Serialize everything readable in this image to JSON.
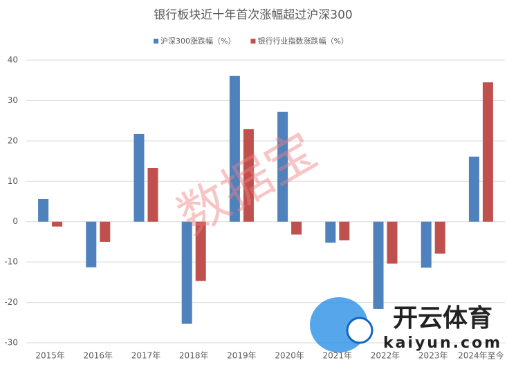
{
  "chart_data": {
    "type": "bar",
    "title": "银行板块近十年首次涨幅超过沪深300",
    "categories": [
      "2015年",
      "2016年",
      "2017年",
      "2018年",
      "2019年",
      "2020年",
      "2021年",
      "2022年",
      "2023年",
      "2024年至今"
    ],
    "series": [
      {
        "name": "沪深300涨跌幅（%）",
        "color": "#4f81bd",
        "values": [
          5.6,
          -11.3,
          21.7,
          -25.3,
          36.1,
          27.2,
          -5.2,
          -21.6,
          -11.4,
          16.1
        ]
      },
      {
        "name": "银行行业指数涨跌幅（%）",
        "color": "#c0504d",
        "values": [
          -1.2,
          -5.0,
          13.3,
          -14.7,
          22.9,
          -3.2,
          -4.6,
          -10.4,
          -7.9,
          34.5
        ]
      }
    ],
    "ylim": [
      -30,
      40
    ],
    "yticks": [
      -30,
      -20,
      -10,
      0,
      10,
      20,
      30,
      40
    ],
    "grid": true,
    "legend": "top",
    "watermarks": [
      "数据宝",
      "开云体育",
      "kaiyun.com"
    ]
  }
}
